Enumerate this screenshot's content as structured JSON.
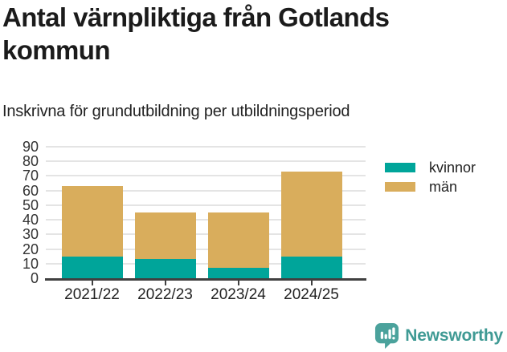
{
  "header": {
    "title_lines": [
      "Antal värnpliktiga från Gotlands",
      "kommun"
    ],
    "subtitle": "Inskrivna för grundutbildning per utbildningsperiod"
  },
  "chart_data": {
    "type": "bar",
    "stacked": true,
    "title": "Antal värnpliktiga från Gotlands kommun",
    "subtitle": "Inskrivna för grundutbildning per utbildningsperiod",
    "categories": [
      "2021/22",
      "2022/23",
      "2023/24",
      "2024/25"
    ],
    "series": [
      {
        "name": "kvinnor",
        "color": "#00A59A",
        "values": [
          15,
          13,
          7,
          15
        ]
      },
      {
        "name": "män",
        "color": "#D9AD5C",
        "values": [
          48,
          32,
          38,
          58
        ]
      }
    ],
    "stack_totals": [
      63,
      45,
      45,
      73
    ],
    "xlabel": "",
    "ylabel": "",
    "ylim": [
      0,
      90
    ],
    "yticks": [
      0,
      10,
      20,
      30,
      40,
      50,
      60,
      70,
      80,
      90
    ],
    "grid": true,
    "legend_position": "right",
    "grid_color": "#E4E4E4",
    "axis_color": "#404040",
    "tick_label_color": "#333333"
  },
  "footer": {
    "brand": "Newsworthy",
    "brand_color": "#3F9A94",
    "icon_color": "#4BA29C",
    "logo_icon": "speech-bubble-bar-chart-icon"
  }
}
